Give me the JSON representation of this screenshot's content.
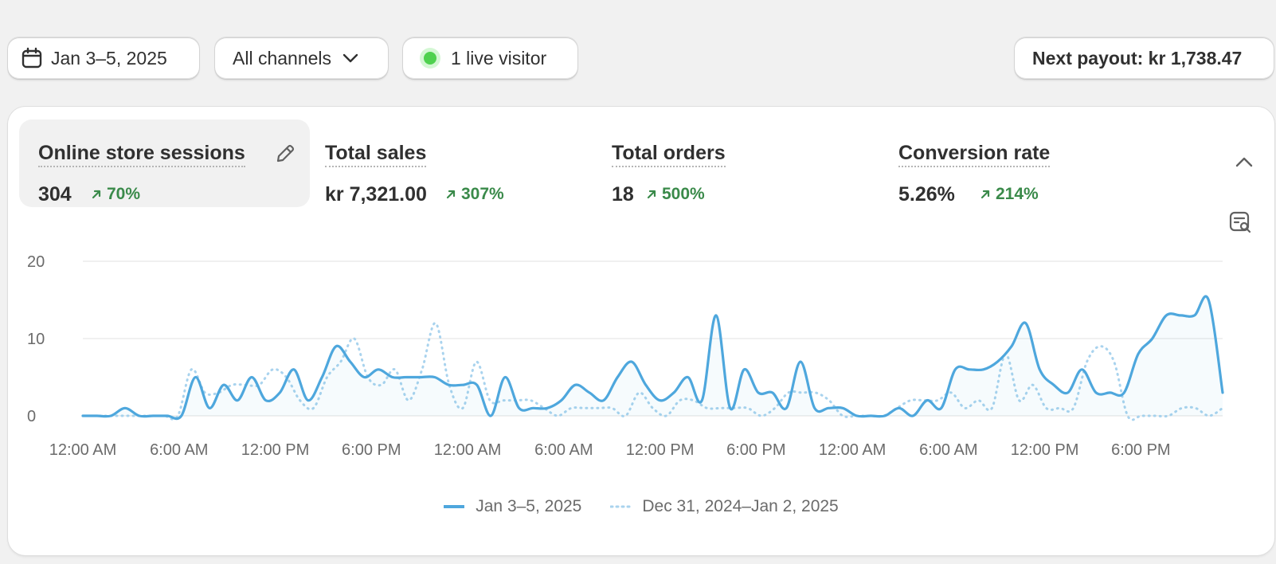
{
  "toolbar": {
    "date_range": "Jan 3–5, 2025",
    "channels": "All channels",
    "live_visitors": "1 live visitor",
    "payout": "Next payout: kr 1,738.47"
  },
  "metrics": [
    {
      "title": "Online store sessions",
      "value": "304",
      "change": "70%"
    },
    {
      "title": "Total sales",
      "value": "kr 7,321.00",
      "change": "307%"
    },
    {
      "title": "Total orders",
      "value": "18",
      "change": "500%"
    },
    {
      "title": "Conversion rate",
      "value": "5.26%",
      "change": "214%"
    }
  ],
  "icons": {
    "calendar": "calendar-icon",
    "chevron": "chevron-down-icon",
    "live": "live-dot-icon",
    "edit": "pencil-icon",
    "collapse": "chevron-up-icon",
    "insight": "search-report-icon",
    "trend": "arrow-up-right-icon"
  },
  "colors": {
    "accent_line": "#4ea7dd",
    "compare_line": "#a9d3ee",
    "positive": "#3a8a4a",
    "live_dot": "#4fd14f"
  },
  "chart_data": {
    "type": "line",
    "x_labels": [
      "12:00 AM",
      "6:00 AM",
      "12:00 PM",
      "6:00 PM",
      "12:00 AM",
      "6:00 AM",
      "12:00 PM",
      "6:00 PM",
      "12:00 AM",
      "6:00 AM",
      "12:00 PM",
      "6:00 PM"
    ],
    "y_ticks": [
      0,
      10,
      20
    ],
    "ylim": [
      0,
      20
    ],
    "grid": true,
    "legend_position": "bottom-center",
    "series": [
      {
        "name": "Jan 3–5, 2025",
        "style": "solid",
        "values": [
          0,
          0,
          0,
          1,
          0,
          0,
          0,
          0,
          5,
          1,
          4,
          2,
          5,
          2,
          3,
          6,
          2,
          5,
          9,
          7,
          5,
          6,
          5,
          5,
          5,
          5,
          4,
          4,
          4,
          0,
          5,
          1,
          1,
          1,
          2,
          4,
          3,
          2,
          5,
          7,
          4,
          2,
          3,
          5,
          2,
          13,
          1,
          6,
          3,
          3,
          1,
          7,
          1,
          1,
          1,
          0,
          0,
          0,
          1,
          0,
          2,
          1,
          6,
          6,
          6,
          7,
          9,
          12,
          6,
          4,
          3,
          6,
          3,
          3,
          3,
          8,
          10,
          13,
          13,
          13,
          15,
          3
        ]
      },
      {
        "name": "Dec 31, 2024–Jan 2, 2025",
        "style": "dotted",
        "values": [
          0,
          0,
          0,
          0,
          0,
          0,
          0,
          0,
          6,
          3,
          3,
          4,
          4,
          4,
          6,
          5,
          2,
          1,
          5,
          7,
          10,
          5,
          4,
          6,
          2,
          6,
          12,
          4,
          1,
          7,
          2,
          2,
          2,
          2,
          1,
          0,
          1,
          1,
          1,
          1,
          0,
          3,
          1,
          0,
          2,
          2,
          1,
          1,
          1,
          1,
          0,
          1,
          3,
          3,
          3,
          2,
          0,
          0,
          0,
          0,
          1,
          2,
          2,
          2,
          3,
          1,
          2,
          1,
          8,
          2,
          4,
          1,
          1,
          1,
          7,
          9,
          7,
          0,
          0,
          0,
          0,
          1,
          1,
          0,
          1
        ]
      }
    ]
  }
}
